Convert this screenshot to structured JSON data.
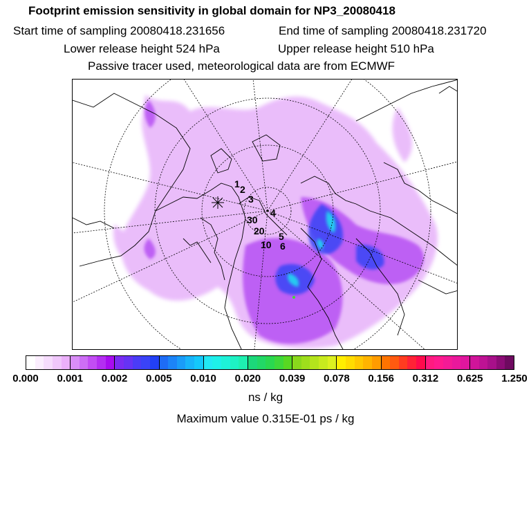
{
  "header": {
    "title": "Footprint emission sensitivity in global domain for NP3_20080418",
    "start_label": "Start time of sampling 20080418.231656",
    "end_label": "End time of sampling 20080418.231720",
    "lower_label": "Lower release height  524 hPa",
    "upper_label": "Upper release height  510 hPa",
    "info": "Passive tracer used, meteorological data are from ECMWF"
  },
  "map": {
    "projection": "polar stereographic (north)",
    "point_labels": [
      "1",
      "2",
      "3",
      "4",
      "5",
      "6",
      "10",
      "20",
      "30"
    ]
  },
  "colorbar": {
    "tick_labels": [
      "0.000",
      "0.001",
      "0.002",
      "0.005",
      "0.010",
      "0.020",
      "0.039",
      "0.078",
      "0.156",
      "0.312",
      "0.625",
      "1.250"
    ],
    "units": "ns / kg",
    "segments": [
      [
        "#ffffff",
        "#fbeefe",
        "#f6dcfd",
        "#f0c7fb",
        "#ebb0fa"
      ],
      [
        "#d98ef7",
        "#cd6ef6",
        "#c24df4",
        "#b42ef2",
        "#a80cf0"
      ],
      [
        "#7a2cf2",
        "#6633f4",
        "#4a3cf6",
        "#3a43f8",
        "#2240f6"
      ],
      [
        "#1e6cf6",
        "#1c84f8",
        "#1a9cf9",
        "#18b4fa",
        "#14c8fb"
      ],
      [
        "#22e8f4",
        "#1ef0e8",
        "#1ef2d8",
        "#1ef2c4",
        "#1ef0b0"
      ],
      [
        "#1cd87a",
        "#22d866",
        "#2ad850",
        "#3ed83a",
        "#58d822"
      ],
      [
        "#8ad81c",
        "#9ede1c",
        "#b4e41c",
        "#c8ea1e",
        "#dcf020"
      ],
      [
        "#ffee00",
        "#ffdc00",
        "#ffc800",
        "#ffb400",
        "#ff9c00"
      ],
      [
        "#ff7400",
        "#ff5a10",
        "#ff3c20",
        "#ff2236",
        "#ff0a4c"
      ],
      [
        "#ff1a80",
        "#ff1a8e",
        "#f41a96",
        "#ea189c",
        "#e0169e"
      ],
      [
        "#d0149a",
        "#be1294",
        "#a8108a",
        "#8c0c76",
        "#6e0a60"
      ]
    ]
  },
  "max_value_label": "Maximum value  0.315E-01 ps / kg"
}
